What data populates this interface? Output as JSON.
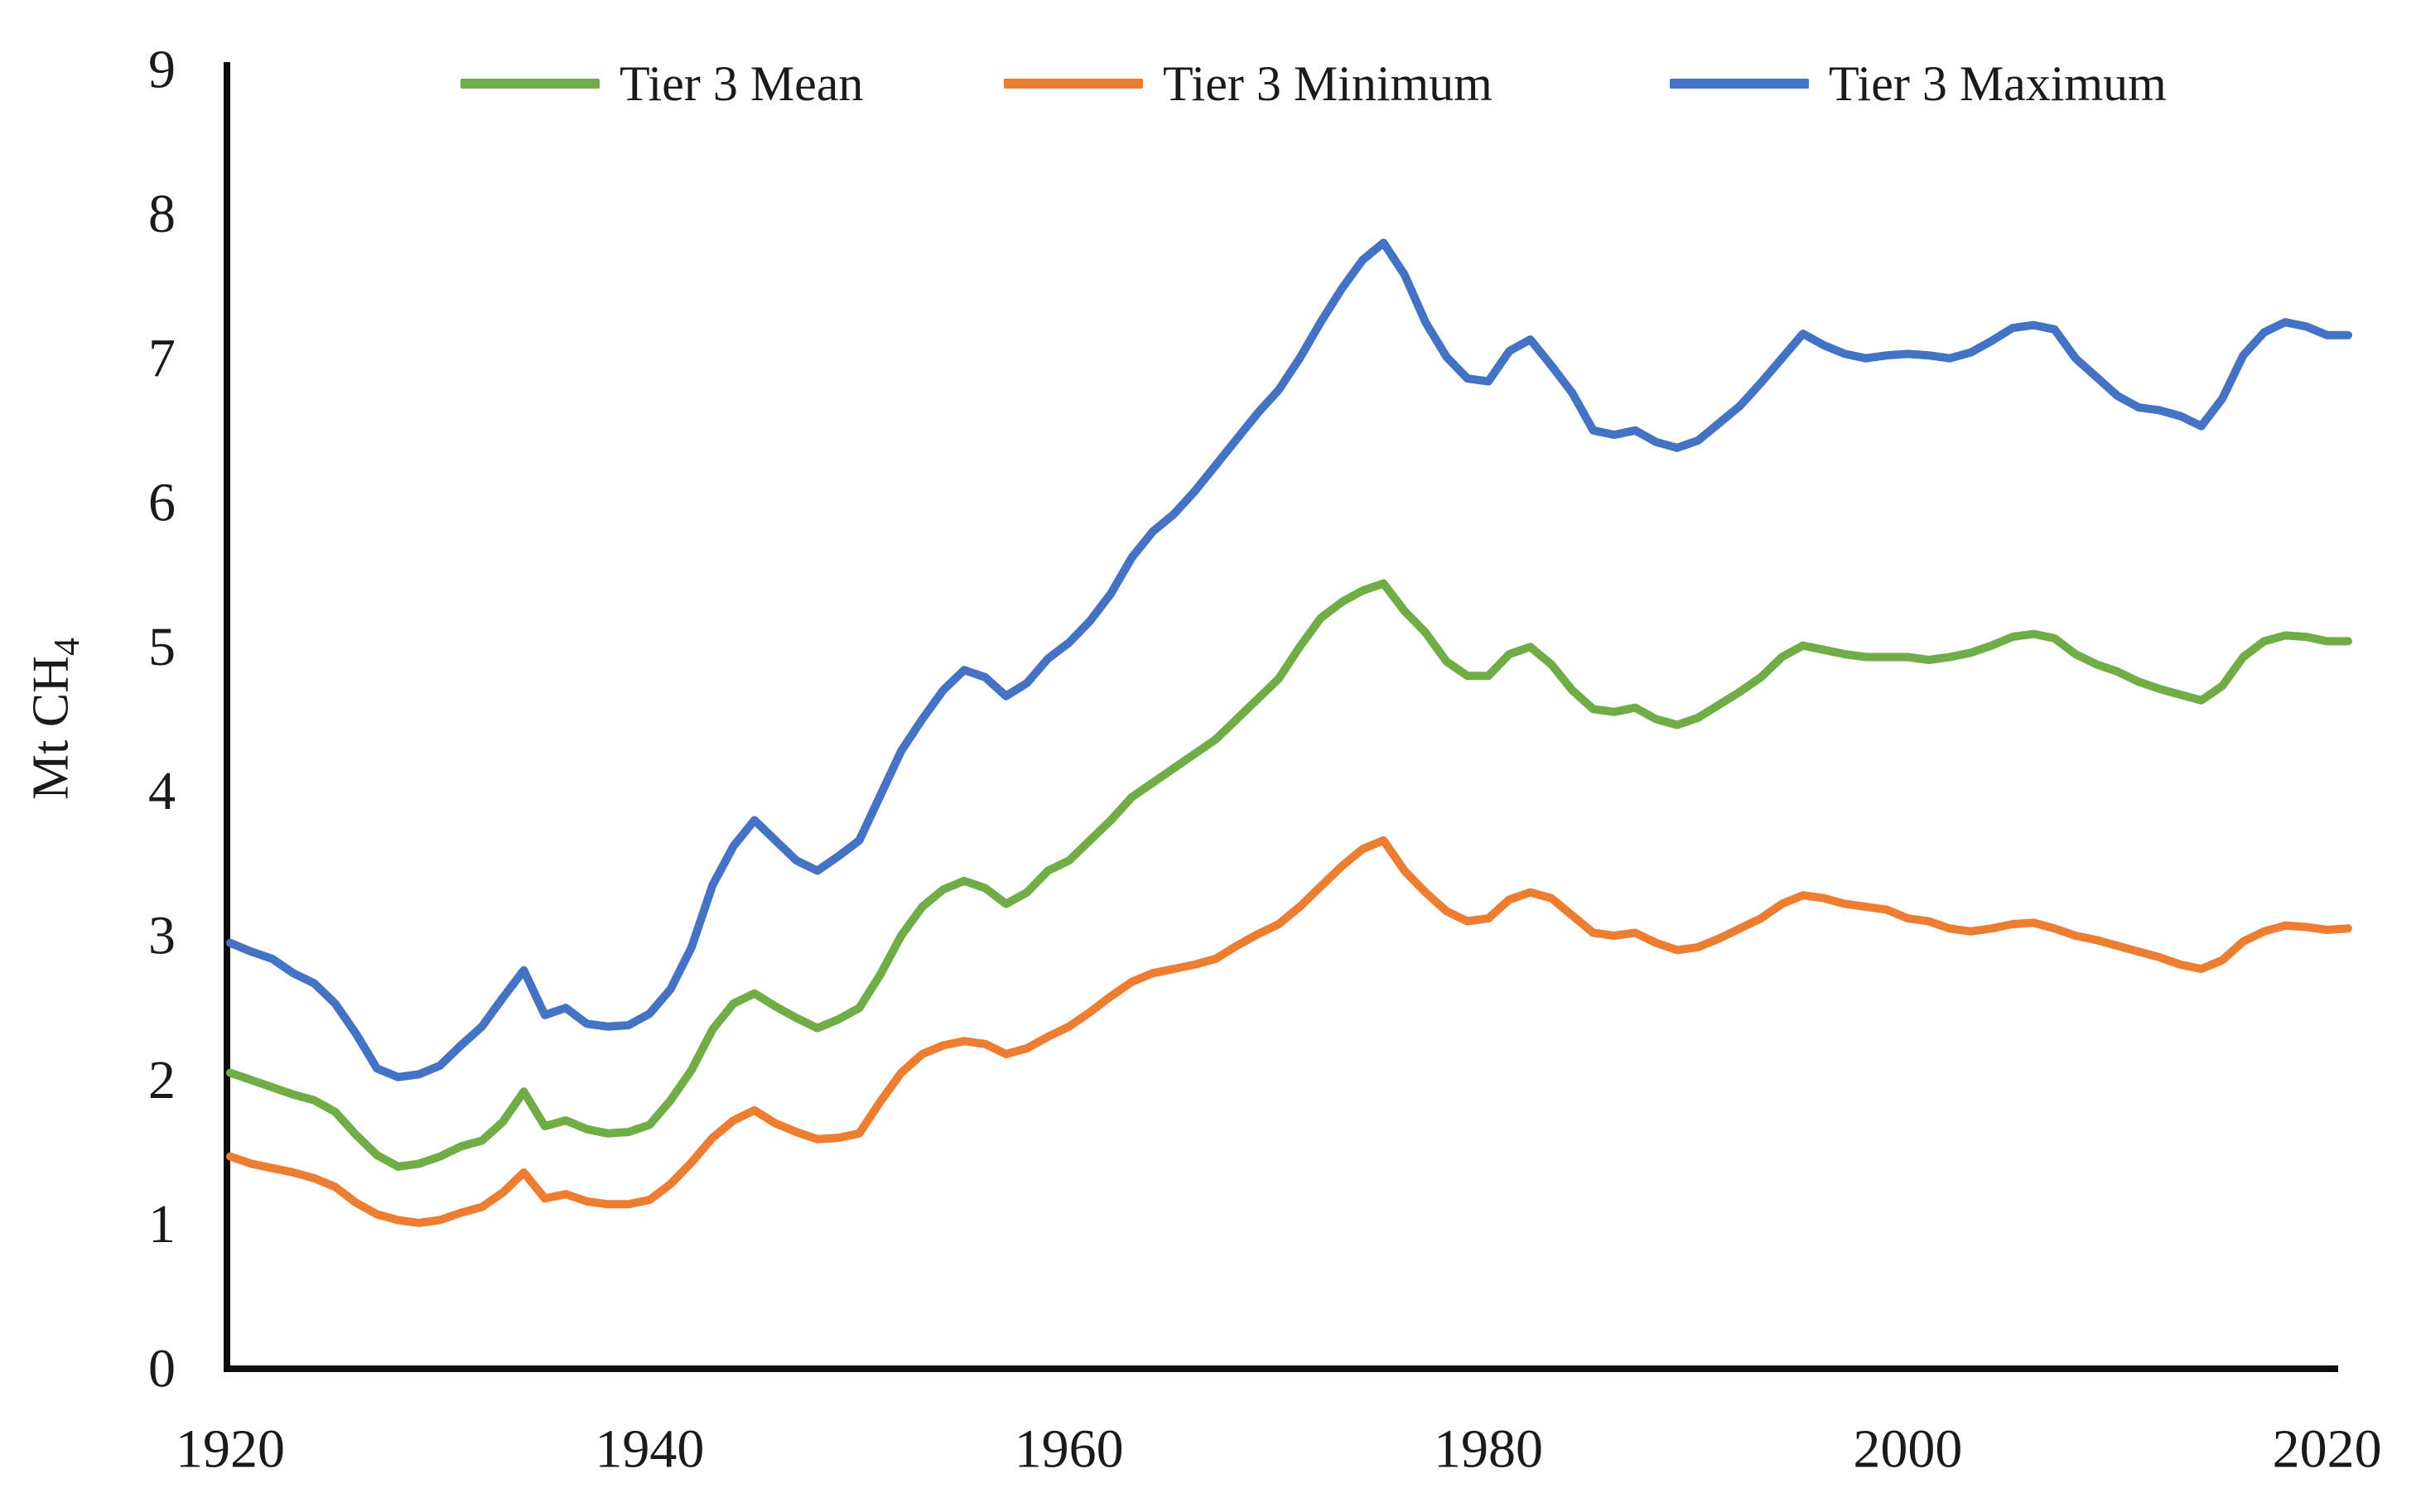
{
  "figure": {
    "background": "#ffffff",
    "text_color": "#1a1a1a",
    "axis_color": "#0d0d0d",
    "ylabel_main": "Mt CH",
    "ylabel_sub": "4"
  },
  "chart_data": {
    "type": "line",
    "title": "",
    "xlabel": "",
    "ylabel": "Mt CH4",
    "xlim": [
      1920,
      2021
    ],
    "ylim": [
      0,
      9
    ],
    "xticks": [
      1920,
      1940,
      1960,
      1980,
      2000,
      2020
    ],
    "yticks": [
      0,
      1,
      2,
      3,
      4,
      5,
      6,
      7,
      8,
      9
    ],
    "grid": false,
    "legend_position": "top",
    "x": [
      1920,
      1921,
      1922,
      1923,
      1924,
      1925,
      1926,
      1927,
      1928,
      1929,
      1930,
      1931,
      1932,
      1933,
      1934,
      1935,
      1936,
      1937,
      1938,
      1939,
      1940,
      1941,
      1942,
      1943,
      1944,
      1945,
      1946,
      1947,
      1948,
      1949,
      1950,
      1951,
      1952,
      1953,
      1954,
      1955,
      1956,
      1957,
      1958,
      1959,
      1960,
      1961,
      1962,
      1963,
      1964,
      1965,
      1966,
      1967,
      1968,
      1969,
      1970,
      1971,
      1972,
      1973,
      1974,
      1975,
      1976,
      1977,
      1978,
      1979,
      1980,
      1981,
      1982,
      1983,
      1984,
      1985,
      1986,
      1987,
      1988,
      1989,
      1990,
      1991,
      1992,
      1993,
      1994,
      1995,
      1996,
      1997,
      1998,
      1999,
      2000,
      2001,
      2002,
      2003,
      2004,
      2005,
      2006,
      2007,
      2008,
      2009,
      2010,
      2011,
      2012,
      2013,
      2014,
      2015,
      2016,
      2017,
      2018,
      2019,
      2020,
      2021
    ],
    "series": [
      {
        "name": "Tier 3 Mean",
        "color": "#70AD47",
        "values": [
          2.05,
          2.0,
          1.95,
          1.9,
          1.86,
          1.78,
          1.62,
          1.48,
          1.4,
          1.42,
          1.47,
          1.54,
          1.58,
          1.71,
          1.92,
          1.68,
          1.72,
          1.66,
          1.63,
          1.64,
          1.69,
          1.86,
          2.07,
          2.35,
          2.53,
          2.6,
          2.51,
          2.43,
          2.36,
          2.42,
          2.5,
          2.73,
          3.0,
          3.2,
          3.32,
          3.38,
          3.33,
          3.22,
          3.3,
          3.45,
          3.52,
          3.66,
          3.8,
          3.96,
          4.06,
          4.16,
          4.26,
          4.36,
          4.5,
          4.64,
          4.78,
          5.0,
          5.2,
          5.31,
          5.39,
          5.44,
          5.25,
          5.1,
          4.9,
          4.8,
          4.8,
          4.95,
          5.0,
          4.88,
          4.7,
          4.57,
          4.55,
          4.58,
          4.5,
          4.46,
          4.51,
          4.6,
          4.69,
          4.79,
          4.93,
          5.01,
          4.98,
          4.95,
          4.93,
          4.93,
          4.93,
          4.91,
          4.93,
          4.96,
          5.01,
          5.07,
          5.09,
          5.06,
          4.95,
          4.88,
          4.83,
          4.76,
          4.71,
          4.67,
          4.63,
          4.73,
          4.93,
          5.04,
          5.08,
          5.07,
          5.04,
          5.04
        ]
      },
      {
        "name": "Tier 3 Minimum",
        "color": "#ED7D31",
        "values": [
          1.47,
          1.42,
          1.39,
          1.36,
          1.32,
          1.26,
          1.15,
          1.07,
          1.03,
          1.01,
          1.03,
          1.08,
          1.12,
          1.22,
          1.36,
          1.18,
          1.21,
          1.16,
          1.14,
          1.14,
          1.17,
          1.28,
          1.43,
          1.6,
          1.72,
          1.79,
          1.7,
          1.64,
          1.59,
          1.6,
          1.63,
          1.85,
          2.05,
          2.18,
          2.24,
          2.27,
          2.25,
          2.18,
          2.22,
          2.3,
          2.37,
          2.47,
          2.58,
          2.68,
          2.74,
          2.77,
          2.8,
          2.84,
          2.93,
          3.01,
          3.08,
          3.2,
          3.34,
          3.48,
          3.6,
          3.66,
          3.45,
          3.3,
          3.17,
          3.1,
          3.12,
          3.25,
          3.3,
          3.26,
          3.14,
          3.02,
          3.0,
          3.02,
          2.95,
          2.9,
          2.92,
          2.98,
          3.05,
          3.12,
          3.22,
          3.28,
          3.26,
          3.22,
          3.2,
          3.18,
          3.12,
          3.1,
          3.05,
          3.03,
          3.05,
          3.08,
          3.09,
          3.05,
          3.0,
          2.97,
          2.93,
          2.89,
          2.85,
          2.8,
          2.77,
          2.83,
          2.96,
          3.03,
          3.07,
          3.06,
          3.04,
          3.05
        ]
      },
      {
        "name": "Tier 3 Maximum",
        "color": "#4472C4",
        "values": [
          2.95,
          2.89,
          2.84,
          2.74,
          2.67,
          2.53,
          2.32,
          2.08,
          2.02,
          2.04,
          2.1,
          2.24,
          2.37,
          2.57,
          2.76,
          2.45,
          2.5,
          2.39,
          2.37,
          2.38,
          2.46,
          2.63,
          2.92,
          3.35,
          3.62,
          3.8,
          3.66,
          3.52,
          3.45,
          3.55,
          3.66,
          3.97,
          4.28,
          4.5,
          4.7,
          4.84,
          4.79,
          4.66,
          4.75,
          4.92,
          5.03,
          5.18,
          5.37,
          5.62,
          5.8,
          5.92,
          6.08,
          6.26,
          6.44,
          6.62,
          6.78,
          7.0,
          7.25,
          7.48,
          7.68,
          7.8,
          7.58,
          7.25,
          7.01,
          6.86,
          6.84,
          7.05,
          7.13,
          6.95,
          6.76,
          6.5,
          6.47,
          6.5,
          6.42,
          6.38,
          6.43,
          6.55,
          6.67,
          6.83,
          7.0,
          7.17,
          7.09,
          7.03,
          7.0,
          7.02,
          7.03,
          7.02,
          7.0,
          7.04,
          7.12,
          7.21,
          7.23,
          7.2,
          7.0,
          6.87,
          6.74,
          6.66,
          6.64,
          6.6,
          6.53,
          6.72,
          7.02,
          7.18,
          7.25,
          7.22,
          7.16,
          7.16
        ]
      }
    ]
  }
}
